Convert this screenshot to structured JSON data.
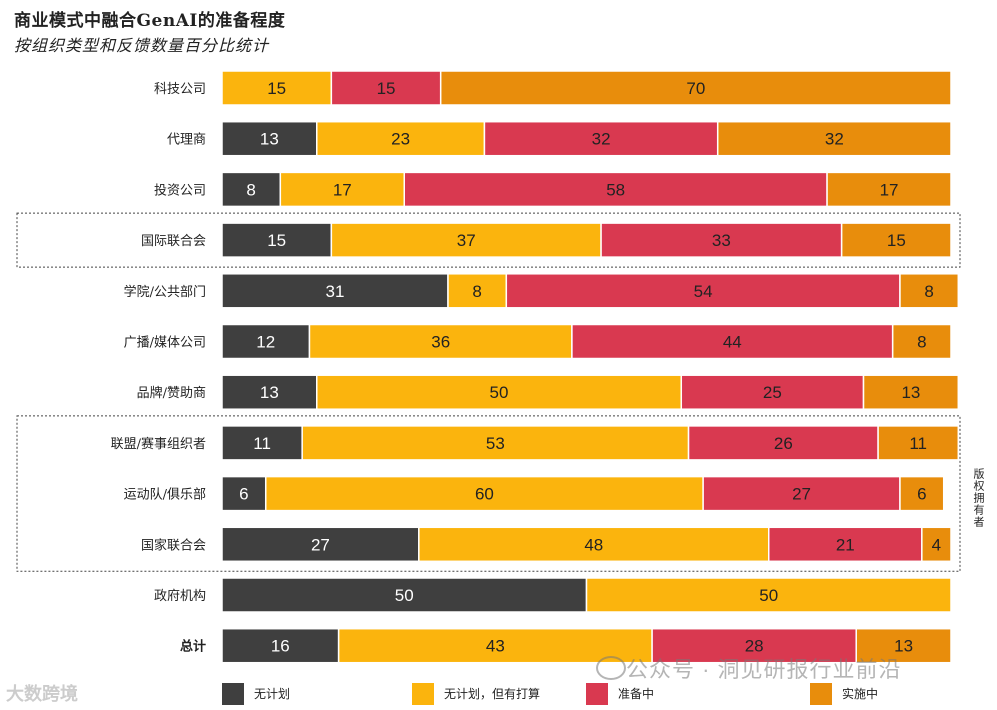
{
  "title": "商业模式中融合GenAI的准备程度",
  "subtitle": "按组织类型和反馈数量百分比统计",
  "copyright": "版权拥有者",
  "watermark": "公众号 · 洞见研报行业前沿",
  "logo_text": "大数跨境",
  "chart_data": {
    "type": "bar",
    "stacked": true,
    "orientation": "horizontal",
    "xlim": [
      0,
      100
    ],
    "categories": [
      "科技公司",
      "代理商",
      "投资公司",
      "国际联合会",
      "学院/公共部门",
      "广播/媒体公司",
      "品牌/赞助商",
      "联盟/赛事组织者",
      "运动队/俱乐部",
      "国家联合会",
      "政府机构",
      "总计"
    ],
    "bold_categories": [
      "总计"
    ],
    "grouped_boxes": [
      [
        "国际联合会"
      ],
      [
        "联盟/赛事组织者",
        "运动队/俱乐部",
        "国家联合会"
      ]
    ],
    "series": [
      {
        "name": "无计划",
        "color": "#3f3f3f",
        "values": [
          0,
          13,
          8,
          15,
          31,
          12,
          13,
          11,
          6,
          27,
          50,
          16
        ]
      },
      {
        "name": "无计划，但有打算",
        "color": "#fbb40d",
        "values": [
          15,
          23,
          17,
          37,
          8,
          36,
          50,
          53,
          60,
          48,
          50,
          43
        ]
      },
      {
        "name": "准备中",
        "color": "#d93950",
        "values": [
          15,
          32,
          58,
          33,
          54,
          44,
          25,
          26,
          27,
          21,
          0,
          28
        ]
      },
      {
        "name": "实施中",
        "color": "#e88d0c",
        "values": [
          70,
          32,
          17,
          15,
          8,
          8,
          13,
          11,
          6,
          4,
          0,
          13
        ]
      }
    ]
  }
}
